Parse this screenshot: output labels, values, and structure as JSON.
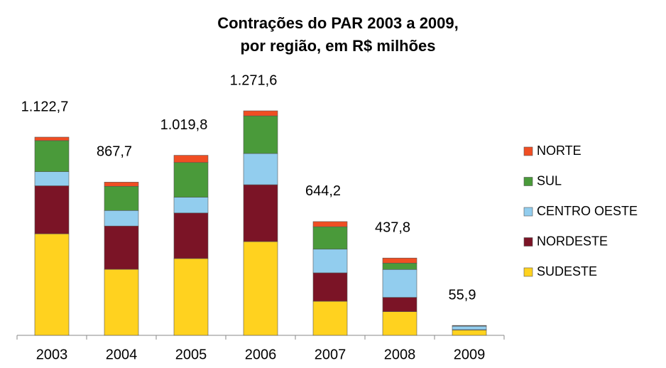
{
  "chart_data": {
    "type": "stacked_bar",
    "title": [
      "Contrações do PAR 2003 a 2009,",
      "por região, em R$ milhões"
    ],
    "categories": [
      "2003",
      "2004",
      "2005",
      "2006",
      "2007",
      "2008",
      "2009"
    ],
    "series": [
      {
        "name": "SUDESTE",
        "color": "#ffd21f",
        "values": [
          575,
          374,
          435,
          531,
          193,
          134,
          30
        ]
      },
      {
        "name": "NORDESTE",
        "color": "#7b1426",
        "values": [
          272,
          245,
          258,
          322,
          161,
          81,
          2
        ]
      },
      {
        "name": "CENTRO OESTE",
        "color": "#92cdee",
        "values": [
          80,
          88,
          89,
          177,
          134,
          158,
          20
        ]
      },
      {
        "name": "SUL",
        "color": "#4a9a3a",
        "values": [
          176,
          137,
          197,
          213,
          127,
          36,
          2
        ]
      },
      {
        "name": "NORTE",
        "color": "#f04e23",
        "values": [
          19.7,
          23.7,
          40.8,
          28.6,
          29.2,
          28.8,
          1.9
        ]
      }
    ],
    "totals": {
      "values": [
        1122.7,
        867.7,
        1019.8,
        1271.6,
        644.2,
        437.8,
        55.9
      ],
      "value_labels": [
        "1.122,7",
        "867,7",
        "1.019,8",
        "1.271,6",
        "644,2",
        "437,8",
        "55,9"
      ]
    },
    "legend": "right"
  }
}
